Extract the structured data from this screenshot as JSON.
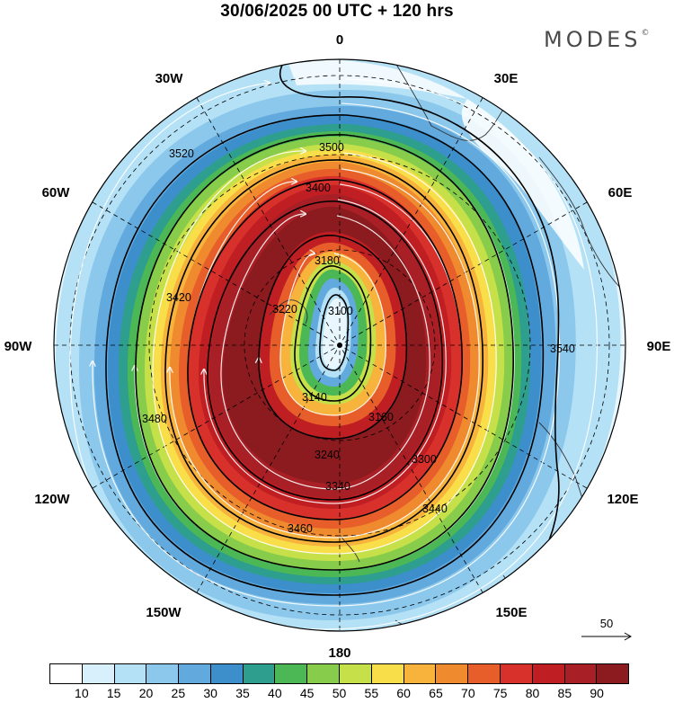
{
  "header": {
    "title": "30/06/2025  00 UTC  + 120 hrs",
    "brand": "MODES",
    "brand_mark": "©"
  },
  "longitude_labels": [
    "0",
    "30E",
    "60E",
    "90E",
    "120E",
    "150E",
    "180",
    "150W",
    "120W",
    "90W",
    "60W",
    "30W"
  ],
  "contour_labels": [
    "3100",
    "3140",
    "3160",
    "3180",
    "3220",
    "3240",
    "3300",
    "3340",
    "3400",
    "3420",
    "3440",
    "3460",
    "3480",
    "3500",
    "3520",
    "3540"
  ],
  "colorbar": {
    "tick_labels": [
      "10",
      "15",
      "20",
      "25",
      "30",
      "35",
      "40",
      "45",
      "50",
      "55",
      "60",
      "65",
      "70",
      "75",
      "80",
      "85",
      "90"
    ],
    "colors": [
      "#ffffff",
      "#d8f0fb",
      "#b4e1f5",
      "#8cc8ec",
      "#62a9dd",
      "#3d8fcc",
      "#2e9e8e",
      "#4cb855",
      "#87cc4b",
      "#c6e04a",
      "#f8df4a",
      "#f7b33b",
      "#f08a2e",
      "#e75e2a",
      "#d8302a",
      "#bf1e23",
      "#a81f25",
      "#8c1b1f"
    ]
  },
  "reference_vector": {
    "value": "50",
    "arrow": "→"
  },
  "map_data": {
    "projection": "polar-stereographic",
    "field": "wind speed (shaded) and geopotential height contours with streamlines",
    "contour_levels_shown": [
      3100,
      3140,
      3160,
      3180,
      3220,
      3240,
      3300,
      3340,
      3400,
      3420,
      3440,
      3460,
      3480,
      3500,
      3520,
      3540
    ],
    "jet_core_speed": "80-90"
  }
}
